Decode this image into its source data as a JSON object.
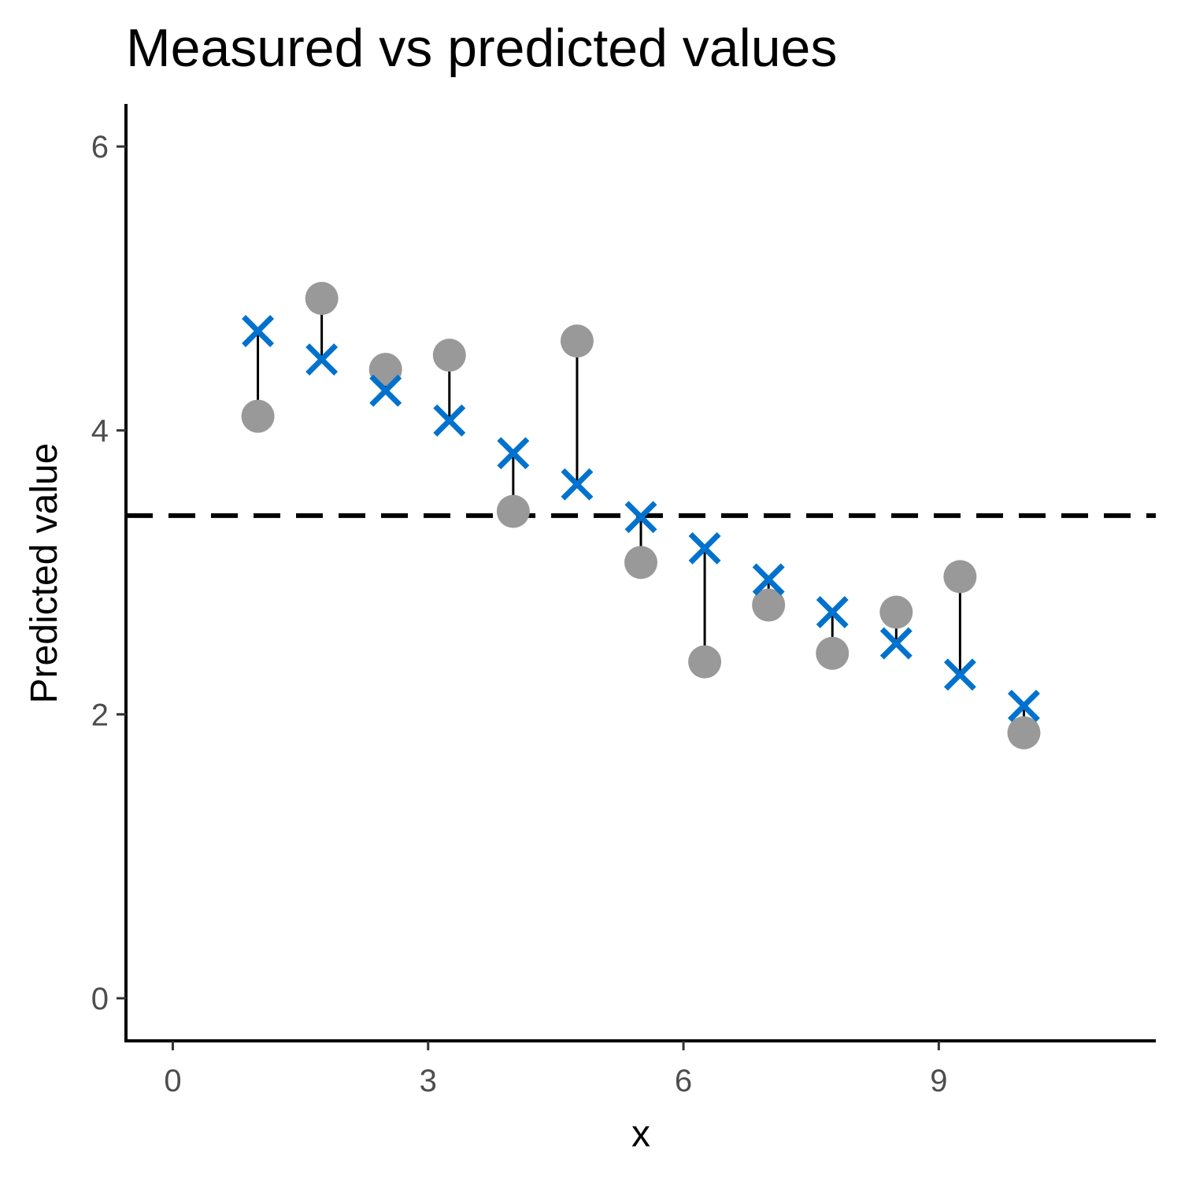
{
  "chart_data": {
    "type": "scatter",
    "title": "Measured vs predicted values",
    "xlabel": "x",
    "ylabel": "Predicted value",
    "xlim": [
      -0.55,
      11.55
    ],
    "ylim": [
      -0.3,
      6.3
    ],
    "xticks": [
      0,
      3,
      6,
      9
    ],
    "yticks": [
      0,
      2,
      4,
      6
    ],
    "x_tick_labels": [
      "0",
      "3",
      "6",
      "9"
    ],
    "y_tick_labels": [
      "0",
      "2",
      "4",
      "6"
    ],
    "grid": false,
    "legend": "none",
    "reference_line": {
      "orientation": "horizontal",
      "y": 3.4,
      "style": "dashed"
    },
    "x": [
      1.0,
      1.75,
      2.5,
      3.25,
      4.0,
      4.75,
      5.5,
      6.25,
      7.0,
      7.75,
      8.5,
      9.25,
      10.0
    ],
    "series": [
      {
        "marker": "circle",
        "color": "#999999",
        "values": [
          4.1,
          4.93,
          4.43,
          4.53,
          3.43,
          4.63,
          3.07,
          2.37,
          2.77,
          2.43,
          2.72,
          2.97,
          1.87
        ]
      },
      {
        "marker": "cross",
        "color": "#0072CE",
        "values": [
          4.7,
          4.5,
          4.28,
          4.07,
          3.84,
          3.62,
          3.39,
          3.17,
          2.95,
          2.72,
          2.5,
          2.28,
          2.06
        ]
      }
    ]
  }
}
